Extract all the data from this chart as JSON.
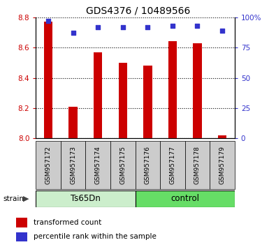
{
  "title": "GDS4376 / 10489566",
  "categories": [
    "GSM957172",
    "GSM957173",
    "GSM957174",
    "GSM957175",
    "GSM957176",
    "GSM957177",
    "GSM957178",
    "GSM957179"
  ],
  "red_values": [
    8.77,
    8.21,
    8.57,
    8.5,
    8.48,
    8.64,
    8.63,
    8.02
  ],
  "blue_values": [
    97,
    87,
    92,
    92,
    92,
    93,
    93,
    89
  ],
  "ylim_left": [
    8.0,
    8.8
  ],
  "ylim_right": [
    0,
    100
  ],
  "yticks_left": [
    8.0,
    8.2,
    8.4,
    8.6,
    8.8
  ],
  "yticks_right": [
    0,
    25,
    50,
    75,
    100
  ],
  "group1_label": "Ts65Dn",
  "group2_label": "control",
  "group1_count": 4,
  "group2_count": 4,
  "strain_label": "strain",
  "legend1": "transformed count",
  "legend2": "percentile rank within the sample",
  "bar_color": "#cc0000",
  "dot_color": "#3333cc",
  "grid_color": "#000000",
  "left_tick_color": "#cc0000",
  "right_tick_color": "#3333cc",
  "group1_bg": "#cceecc",
  "group2_bg": "#66dd66",
  "xlabel_bg": "#cccccc",
  "plot_bg": "#ffffff",
  "bar_width": 0.35
}
